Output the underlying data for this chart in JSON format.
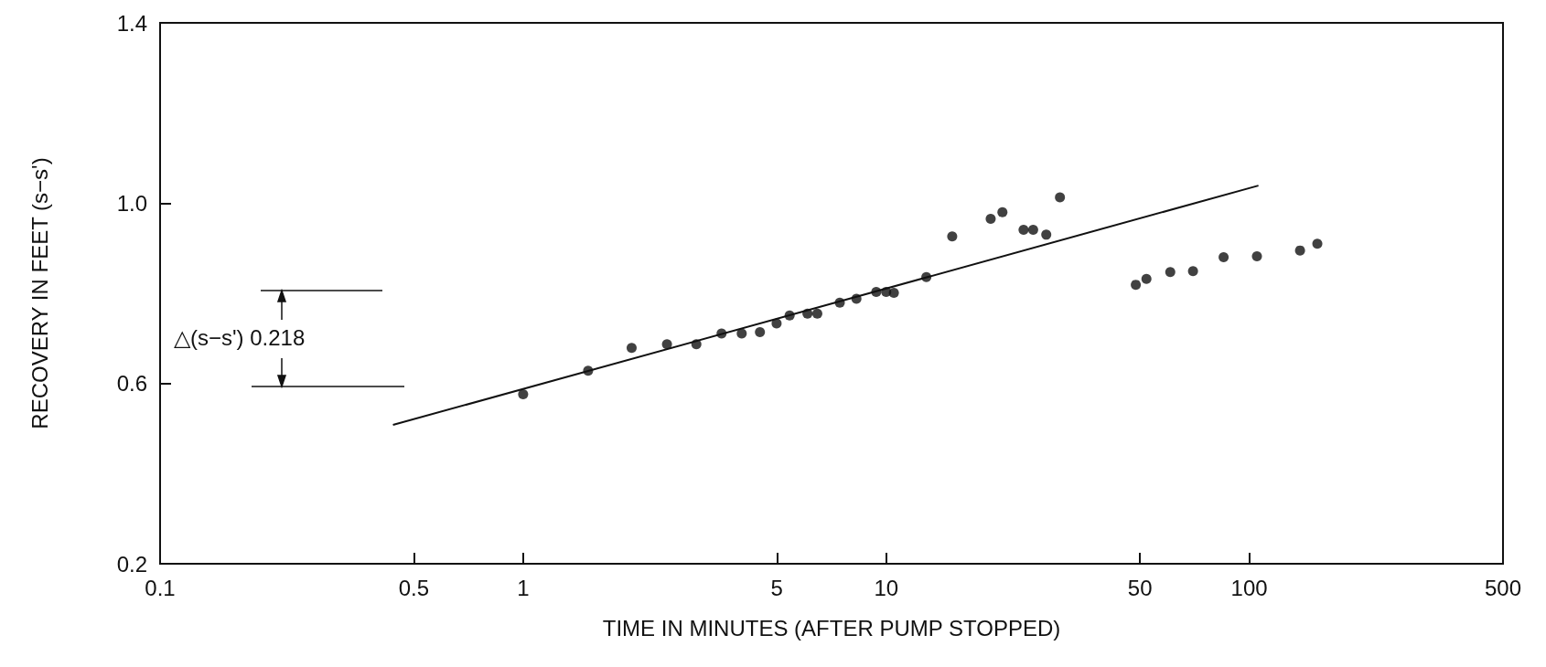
{
  "chart_data": {
    "type": "scatter",
    "xlabel": "TIME IN MINUTES (AFTER PUMP STOPPED)",
    "ylabel": "RECOVERY IN FEET (s−s')",
    "log": "x",
    "grid": false,
    "xlim": [
      0.1,
      500
    ],
    "xticks": [
      0.1,
      0.5,
      1,
      5,
      10,
      50,
      100,
      500
    ],
    "ylim": [
      0.2,
      1.4
    ],
    "yticks": [
      0.2,
      0.6,
      {
        "value": 1,
        "label": "1.0"
      },
      1.4
    ],
    "annotations": [
      "△(s−s') 0.218"
    ],
    "series": [
      {
        "marker": "circle",
        "color": "#111111",
        "x": [
          1,
          1.51,
          1.99,
          2.49,
          3.0,
          3.52,
          4.0,
          4.49,
          4.99,
          5.42,
          6.07,
          6.46,
          7.45,
          8.28,
          9.39,
          10,
          10.5,
          12.9,
          15.2,
          19.4,
          20.9,
          23.9,
          25.4,
          27.6,
          30.1,
          48.7,
          52.1,
          60.6,
          70,
          85,
          105,
          138,
          154
        ],
        "values": [
          0.576,
          0.628,
          0.679,
          0.687,
          0.687,
          0.711,
          0.711,
          0.714,
          0.733,
          0.751,
          0.755,
          0.755,
          0.779,
          0.788,
          0.803,
          0.803,
          0.801,
          0.836,
          0.926,
          0.965,
          0.98,
          0.941,
          0.941,
          0.93,
          1.013,
          0.819,
          0.832,
          0.847,
          0.849,
          0.88,
          0.882,
          0.895,
          0.91
        ]
      },
      {
        "type": "line",
        "color": "#111111",
        "line_style": "solid",
        "x": [
          0.438,
          106
        ],
        "values": [
          0.508,
          1.039
        ]
      }
    ]
  }
}
